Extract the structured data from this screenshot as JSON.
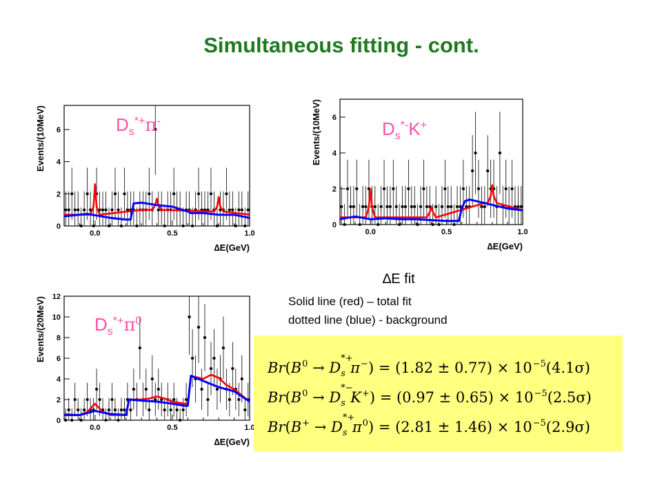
{
  "page": {
    "title": "Simultaneous fitting - cont."
  },
  "legend": {
    "heading": "∆E fit",
    "line1": "Solid line (red) – total fit",
    "line2": "dotted line (blue) - background"
  },
  "colors": {
    "title": "#1e7a1e",
    "fit": "#ff0000",
    "background": "#0000ff",
    "panel_label": "#ff4fa8",
    "result_box": "#ffff80"
  },
  "results": [
    {
      "lhs_pre": "Br",
      "b": "B",
      "b_sup": "0",
      "arrow": "→",
      "d": "D",
      "d_sup": "*+",
      "d_sub": "s",
      "x": "π",
      "x_sup": "−",
      "value": "= (1.82 ± 0.77) × 10",
      "exp": "−5",
      "sig": "(4.1σ)"
    },
    {
      "lhs_pre": "Br",
      "b": "B",
      "b_sup": "0",
      "arrow": "→",
      "d": "D",
      "d_sup": "*−",
      "d_sub": "s",
      "x": "K",
      "x_sup": "+",
      "value": "= (0.97 ± 0.65) × 10",
      "exp": "−5",
      "sig": "(2.5σ)"
    },
    {
      "lhs_pre": "Br",
      "b": "B",
      "b_sup": "+",
      "arrow": "→",
      "d": "D",
      "d_sup": "*+",
      "d_sub": "s",
      "x": "π",
      "x_sup": "0",
      "value": "= (2.81 ± 1.46) × 10",
      "exp": "−5",
      "sig": "(2.9σ)"
    }
  ],
  "chart_data": [
    {
      "type": "scatter",
      "panel_label": {
        "base": "D",
        "sub": "s",
        "sup": "*+",
        "particle": "π",
        "particle_sup": "-"
      },
      "xlabel": "∆E(GeV)",
      "ylabel": "Events/(10MeV)",
      "xlim": [
        -0.2,
        1.0
      ],
      "ylim": [
        0,
        7.5
      ],
      "xticks": [
        {
          "v": 0.0,
          "label": "0.0"
        },
        {
          "v": 0.5,
          "label": "0.5"
        },
        {
          "v": 1.0,
          "label": "1.0"
        }
      ],
      "yticks": [
        {
          "v": 0,
          "label": "0"
        },
        {
          "v": 2,
          "label": "2"
        },
        {
          "v": 4,
          "label": "4"
        },
        {
          "v": 6,
          "label": "6"
        }
      ],
      "points": {
        "x": [
          -0.19,
          -0.17,
          -0.15,
          -0.13,
          -0.11,
          -0.09,
          -0.07,
          -0.05,
          -0.03,
          -0.01,
          0.01,
          0.03,
          0.05,
          0.07,
          0.09,
          0.11,
          0.13,
          0.15,
          0.17,
          0.19,
          0.21,
          0.23,
          0.25,
          0.27,
          0.29,
          0.31,
          0.33,
          0.35,
          0.37,
          0.39,
          0.41,
          0.43,
          0.45,
          0.47,
          0.49,
          0.51,
          0.53,
          0.55,
          0.57,
          0.59,
          0.61,
          0.63,
          0.65,
          0.67,
          0.69,
          0.71,
          0.73,
          0.75,
          0.77,
          0.79,
          0.81,
          0.83,
          0.85,
          0.87,
          0.89,
          0.91,
          0.93,
          0.95,
          0.97,
          0.99
        ],
        "y": [
          1,
          1,
          2,
          1,
          1,
          0,
          1,
          2,
          1,
          0,
          2,
          1,
          1,
          1,
          0,
          1,
          2,
          1,
          0,
          2,
          1,
          1,
          1,
          0,
          1,
          1,
          1,
          2,
          1,
          6,
          1,
          1,
          0,
          1,
          1,
          2,
          1,
          1,
          0,
          1,
          1,
          0,
          1,
          2,
          1,
          1,
          1,
          2,
          1,
          0,
          1,
          1,
          2,
          1,
          1,
          0,
          1,
          1,
          0,
          1
        ]
      },
      "series": [
        {
          "name": "total fit",
          "color": "#ff0000",
          "x": [
            -0.2,
            -0.03,
            -0.01,
            0.0,
            0.01,
            0.03,
            0.3,
            0.37,
            0.39,
            0.4,
            0.41,
            0.43,
            0.75,
            0.77,
            0.79,
            0.8,
            0.81,
            0.83,
            1.0
          ],
          "y": [
            0.7,
            0.7,
            1.2,
            2.6,
            1.2,
            0.7,
            1.0,
            1.0,
            1.3,
            1.7,
            1.3,
            1.0,
            0.9,
            0.9,
            1.2,
            1.8,
            1.2,
            0.9,
            0.7
          ]
        },
        {
          "name": "background",
          "color": "#0000ff",
          "x": [
            -0.2,
            -0.05,
            0.1,
            0.2,
            0.23,
            0.25,
            0.3,
            0.4,
            0.5,
            0.6,
            0.62,
            0.7,
            0.8,
            0.9,
            1.0
          ],
          "y": [
            0.6,
            0.75,
            0.5,
            0.4,
            0.4,
            1.4,
            1.45,
            1.3,
            1.2,
            0.9,
            0.8,
            0.8,
            0.7,
            0.7,
            0.5
          ]
        }
      ]
    },
    {
      "type": "scatter",
      "panel_label": {
        "base": "D",
        "sub": "s",
        "sup": "*-",
        "particle": "K",
        "particle_sup": "+"
      },
      "xlabel": "∆E(GeV)",
      "ylabel": "Events/(10MeV)",
      "xlim": [
        -0.2,
        1.0
      ],
      "ylim": [
        0,
        7.0
      ],
      "xticks": [
        {
          "v": 0.0,
          "label": "0.0"
        },
        {
          "v": 0.5,
          "label": "0.5"
        },
        {
          "v": 1.0,
          "label": "1.0"
        }
      ],
      "yticks": [
        {
          "v": 0,
          "label": "0"
        },
        {
          "v": 2,
          "label": "2"
        },
        {
          "v": 4,
          "label": "4"
        },
        {
          "v": 6,
          "label": "6"
        }
      ],
      "points": {
        "x": [
          -0.19,
          -0.17,
          -0.15,
          -0.13,
          -0.11,
          -0.09,
          -0.07,
          -0.05,
          -0.03,
          -0.01,
          0.01,
          0.03,
          0.05,
          0.07,
          0.09,
          0.11,
          0.13,
          0.15,
          0.17,
          0.19,
          0.21,
          0.23,
          0.25,
          0.27,
          0.29,
          0.31,
          0.33,
          0.35,
          0.37,
          0.39,
          0.41,
          0.43,
          0.45,
          0.47,
          0.49,
          0.51,
          0.53,
          0.55,
          0.57,
          0.59,
          0.61,
          0.63,
          0.65,
          0.67,
          0.69,
          0.71,
          0.73,
          0.75,
          0.77,
          0.79,
          0.81,
          0.83,
          0.85,
          0.87,
          0.89,
          0.91,
          0.93,
          0.95,
          0.97,
          0.99
        ],
        "y": [
          1,
          0,
          2,
          1,
          1,
          2,
          0,
          1,
          1,
          2,
          1,
          1,
          0,
          1,
          2,
          1,
          1,
          2,
          1,
          0,
          1,
          1,
          2,
          1,
          1,
          0,
          1,
          2,
          1,
          1,
          0,
          1,
          0,
          1,
          2,
          1,
          1,
          0,
          1,
          1,
          2,
          1,
          1,
          3,
          4,
          2,
          1,
          1,
          3,
          2,
          2,
          1,
          4,
          1,
          2,
          1,
          2,
          1,
          1,
          1
        ]
      },
      "series": [
        {
          "name": "total fit",
          "color": "#ff0000",
          "x": [
            -0.2,
            -0.03,
            -0.01,
            0.0,
            0.01,
            0.03,
            0.35,
            0.37,
            0.39,
            0.4,
            0.41,
            0.43,
            0.75,
            0.77,
            0.79,
            0.8,
            0.81,
            0.83,
            1.0
          ],
          "y": [
            0.4,
            0.4,
            1.0,
            2.0,
            1.0,
            0.4,
            0.4,
            0.4,
            0.7,
            1.0,
            0.7,
            0.4,
            1.2,
            1.2,
            1.6,
            2.2,
            1.6,
            1.2,
            0.8
          ]
        },
        {
          "name": "background",
          "color": "#0000ff",
          "x": [
            -0.2,
            -0.1,
            0.0,
            0.1,
            0.2,
            0.3,
            0.4,
            0.5,
            0.58,
            0.6,
            0.62,
            0.65,
            0.7,
            0.8,
            0.9,
            1.0
          ],
          "y": [
            0.3,
            0.45,
            0.3,
            0.35,
            0.3,
            0.3,
            0.25,
            0.2,
            0.2,
            0.9,
            1.3,
            1.4,
            1.3,
            1.1,
            0.9,
            0.8
          ]
        }
      ]
    },
    {
      "type": "scatter",
      "panel_label": {
        "base": "D",
        "sub": "s",
        "sup": "*+",
        "particle": "π",
        "particle_sup": "0"
      },
      "xlabel": "∆E(GeV)",
      "ylabel": "Events/(20MeV)",
      "xlim": [
        -0.2,
        1.0
      ],
      "ylim": [
        0,
        12.0
      ],
      "xticks": [
        {
          "v": 0.0,
          "label": "0.0"
        },
        {
          "v": 0.5,
          "label": "0.5"
        },
        {
          "v": 1.0,
          "label": "1.0"
        }
      ],
      "yticks": [
        {
          "v": 0,
          "label": "0"
        },
        {
          "v": 2,
          "label": "2"
        },
        {
          "v": 4,
          "label": "4"
        },
        {
          "v": 6,
          "label": "6"
        },
        {
          "v": 8,
          "label": "8"
        },
        {
          "v": 10,
          "label": "10"
        },
        {
          "v": 12,
          "label": "12"
        }
      ],
      "points": {
        "x": [
          -0.19,
          -0.17,
          -0.15,
          -0.13,
          -0.11,
          -0.09,
          -0.07,
          -0.05,
          -0.03,
          -0.01,
          0.01,
          0.03,
          0.05,
          0.07,
          0.09,
          0.11,
          0.13,
          0.15,
          0.17,
          0.19,
          0.21,
          0.23,
          0.25,
          0.27,
          0.29,
          0.31,
          0.33,
          0.35,
          0.37,
          0.39,
          0.41,
          0.43,
          0.45,
          0.47,
          0.49,
          0.51,
          0.53,
          0.55,
          0.57,
          0.59,
          0.61,
          0.63,
          0.65,
          0.67,
          0.69,
          0.71,
          0.73,
          0.75,
          0.77,
          0.79,
          0.81,
          0.83,
          0.85,
          0.87,
          0.89,
          0.91,
          0.93,
          0.95,
          0.97,
          0.99
        ],
        "y": [
          0,
          1,
          0,
          2,
          1,
          0,
          1,
          2,
          1,
          1,
          3,
          2,
          1,
          0,
          1,
          2,
          1,
          0,
          1,
          1,
          2,
          1,
          3,
          2,
          7,
          2,
          3,
          1,
          4,
          2,
          3,
          2,
          1,
          2,
          1,
          2,
          1,
          0,
          1,
          2,
          10,
          6,
          4,
          9,
          3,
          8,
          2,
          5,
          6,
          3,
          4,
          7,
          3,
          2,
          5,
          3,
          2,
          4,
          1,
          2
        ]
      },
      "series": [
        {
          "name": "total fit",
          "color": "#ff0000",
          "x": [
            -0.2,
            -0.1,
            -0.05,
            0.0,
            0.05,
            0.1,
            0.2,
            0.22,
            0.3,
            0.35,
            0.4,
            0.45,
            0.5,
            0.58,
            0.6,
            0.62,
            0.7,
            0.75,
            0.8,
            0.85,
            0.9,
            1.0
          ],
          "y": [
            0.6,
            0.5,
            0.8,
            1.6,
            0.8,
            0.5,
            0.5,
            2.0,
            2.0,
            2.1,
            2.3,
            2.1,
            1.8,
            1.6,
            1.6,
            4.3,
            4.0,
            4.4,
            4.1,
            3.4,
            3.0,
            1.8
          ]
        },
        {
          "name": "background",
          "color": "#0000ff",
          "x": [
            -0.2,
            -0.1,
            0.0,
            0.1,
            0.2,
            0.22,
            0.3,
            0.4,
            0.5,
            0.58,
            0.6,
            0.62,
            0.7,
            0.8,
            0.9,
            1.0
          ],
          "y": [
            0.5,
            0.5,
            0.9,
            0.6,
            0.5,
            2.0,
            1.9,
            1.8,
            1.6,
            1.4,
            1.4,
            4.3,
            3.8,
            3.2,
            2.8,
            1.8
          ]
        }
      ]
    }
  ]
}
